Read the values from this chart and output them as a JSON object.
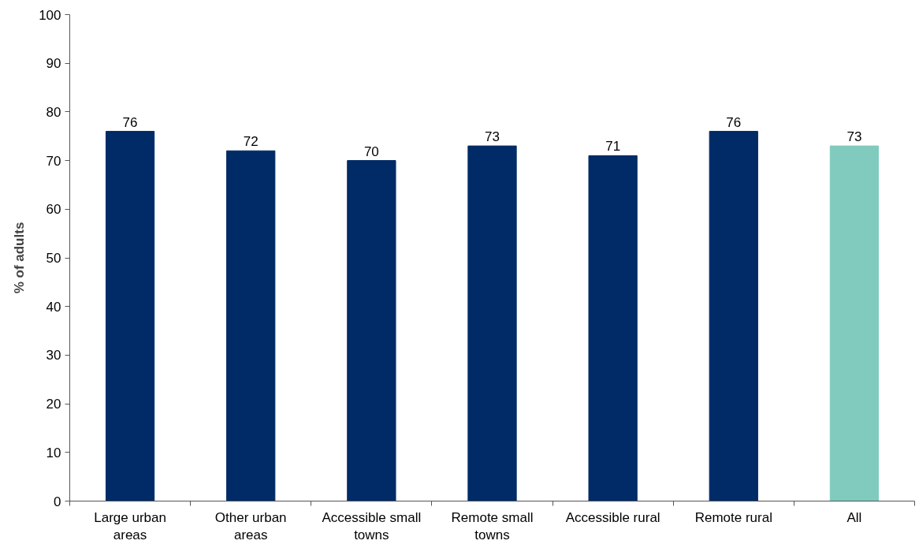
{
  "chart_data": {
    "type": "bar",
    "ylabel": "% of adults",
    "categories": [
      "Large urban areas",
      "Other urban areas",
      "Accessible small towns",
      "Remote small towns",
      "Accessible rural",
      "Remote rural",
      "All"
    ],
    "values": [
      76,
      72,
      70,
      73,
      71,
      76,
      73
    ],
    "colors": [
      "#002b66",
      "#002b66",
      "#002b66",
      "#002b66",
      "#002b66",
      "#002b66",
      "#80cbbd"
    ],
    "ylim": [
      0,
      100
    ],
    "yticks": [
      0,
      10,
      20,
      30,
      40,
      50,
      60,
      70,
      80,
      90,
      100
    ],
    "data_labels": true,
    "grid": false
  }
}
